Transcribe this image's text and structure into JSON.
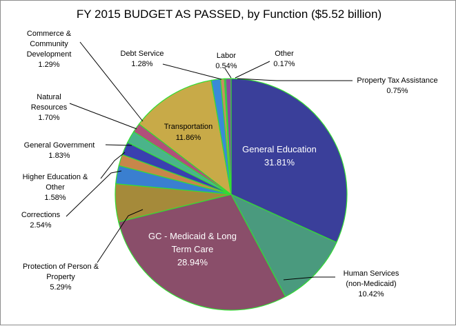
{
  "chart_data": {
    "type": "pie",
    "title": "FY 2015 BUDGET AS PASSED, by Function ($5.52 billion)",
    "slices": [
      {
        "name": "General Education",
        "lines": [
          "General Education"
        ],
        "value": 31.81,
        "label": "31.81%",
        "color": "#3a3f9a"
      },
      {
        "name": "Human Services (non-Medicaid)",
        "lines": [
          "Human Services",
          "(non-Medicaid)"
        ],
        "value": 10.42,
        "label": "10.42%",
        "color": "#4a9a7e"
      },
      {
        "name": "GC - Medicaid & Long Term Care",
        "lines": [
          "GC - Medicaid & Long",
          "Term Care"
        ],
        "value": 28.94,
        "label": "28.94%",
        "color": "#8a4e6a"
      },
      {
        "name": "Protection of Person & Property",
        "lines": [
          "Protection of Person &",
          "Property"
        ],
        "value": 5.29,
        "label": "5.29%",
        "color": "#a58a3a"
      },
      {
        "name": "Corrections",
        "lines": [
          "Corrections"
        ],
        "value": 2.54,
        "label": "2.54%",
        "color": "#3a7fd0"
      },
      {
        "name": "Higher Education & Other",
        "lines": [
          "Higher Education &",
          "Other"
        ],
        "value": 1.58,
        "label": "1.58%",
        "color": "#c8864a"
      },
      {
        "name": "General Government",
        "lines": [
          "General Government"
        ],
        "value": 1.83,
        "label": "1.83%",
        "color": "#3a40b0"
      },
      {
        "name": "Natural Resources",
        "lines": [
          "Natural",
          "Resources"
        ],
        "value": 1.7,
        "label": "1.70%",
        "color": "#4ab48a"
      },
      {
        "name": "Commerce & Community Development",
        "lines": [
          "Commerce &",
          "Community",
          "Development"
        ],
        "value": 1.29,
        "label": "1.29%",
        "color": "#b0507a"
      },
      {
        "name": "Transportation",
        "lines": [
          "Transportation"
        ],
        "value": 11.86,
        "label": "11.86%",
        "color": "#c8aa48"
      },
      {
        "name": "Debt Service",
        "lines": [
          "Debt Service"
        ],
        "value": 1.28,
        "label": "1.28%",
        "color": "#3a8ad8"
      },
      {
        "name": "Labor",
        "lines": [
          "Labor"
        ],
        "value": 0.54,
        "label": "0.54%",
        "color": "#c89060"
      },
      {
        "name": "Other",
        "lines": [
          "Other"
        ],
        "value": 0.17,
        "label": "0.17%",
        "color": "#5060c0"
      },
      {
        "name": "Property Tax Assistance",
        "lines": [
          "Property Tax Assistance"
        ],
        "value": 0.75,
        "label": "0.75%",
        "color": "#8a4aa0"
      }
    ]
  }
}
